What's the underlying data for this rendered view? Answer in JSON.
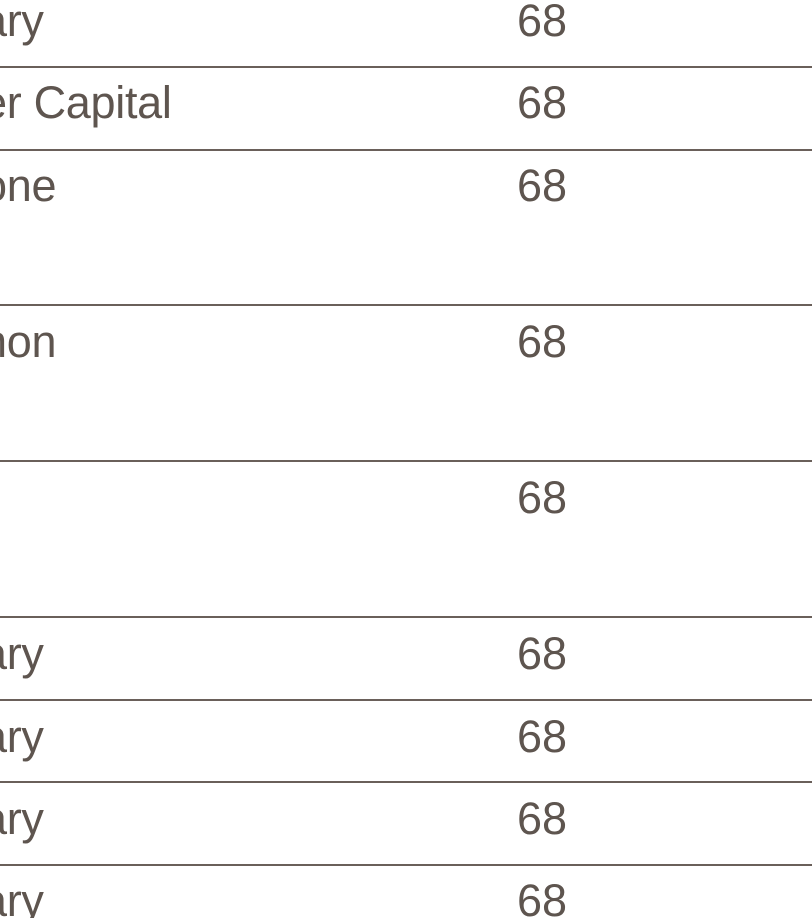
{
  "table": {
    "rows": [
      {
        "name": "ary",
        "value": "68"
      },
      {
        "name": "er Capital",
        "value": "68"
      },
      {
        "name": "one",
        "value": "68"
      },
      {
        "name": "non",
        "value": "68"
      },
      {
        "name": "",
        "value": "68"
      },
      {
        "name": "ary",
        "value": "68"
      },
      {
        "name": "ary",
        "value": "68"
      },
      {
        "name": "ary",
        "value": "68"
      },
      {
        "name": "ary",
        "value": "68"
      }
    ]
  },
  "colors": {
    "text": "#5e554f",
    "rule": "#6a605a",
    "background": "#ffffff"
  }
}
